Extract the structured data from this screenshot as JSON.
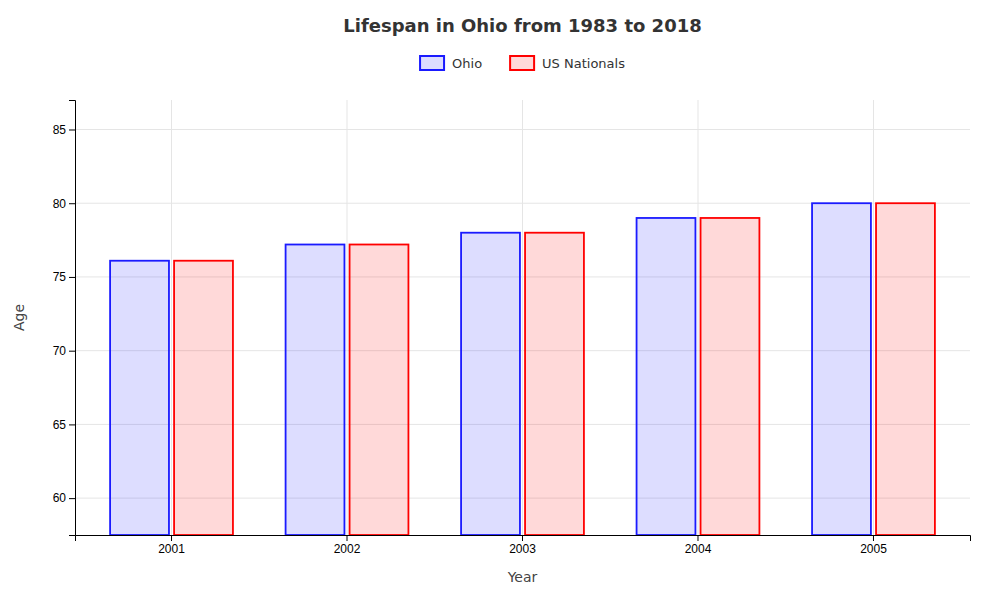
{
  "chart_data": {
    "type": "bar",
    "title": "Lifespan in Ohio from 1983 to 2018",
    "xlabel": "Year",
    "ylabel": "Age",
    "categories": [
      "2001",
      "2002",
      "2003",
      "2004",
      "2005"
    ],
    "series": [
      {
        "name": "Ohio",
        "color": "#1a1aff",
        "values": [
          76.1,
          77.2,
          78.0,
          79.0,
          80.0
        ]
      },
      {
        "name": "US Nationals",
        "color": "#ff0000",
        "values": [
          76.1,
          77.2,
          78.0,
          79.0,
          80.0
        ]
      }
    ],
    "ylim": [
      57.5,
      87
    ],
    "yticks": [
      60,
      65,
      70,
      75,
      80,
      85
    ],
    "grid": true,
    "legend": "top"
  }
}
